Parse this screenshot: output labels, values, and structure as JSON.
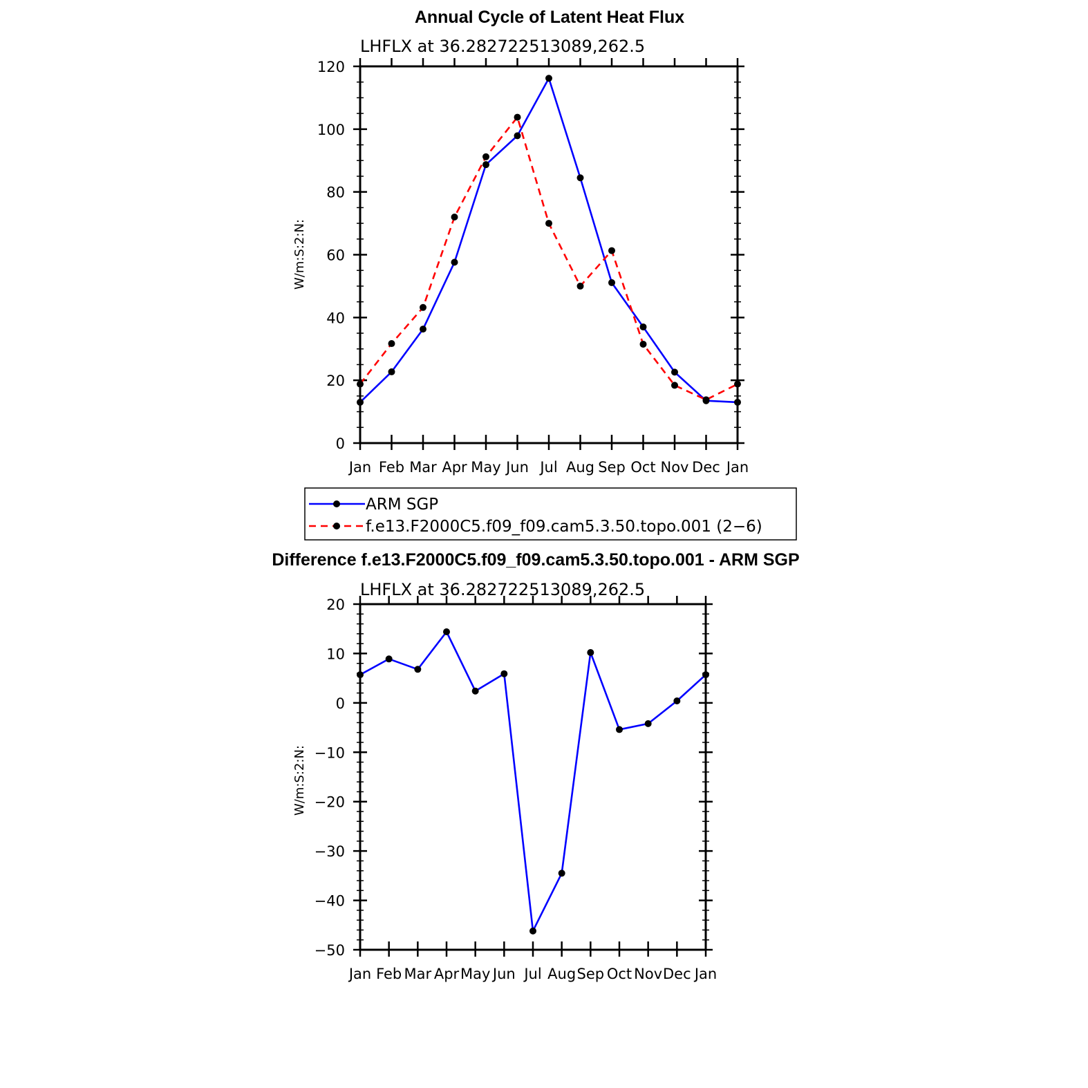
{
  "colors": {
    "series_a": "#0000ff",
    "series_b": "#ff0000",
    "marker": "#000000",
    "axis": "#000000"
  },
  "top": {
    "title": "Annual Cycle of Latent Heat Flux",
    "subtitle": "LHFLX  at  36.282722513089,262.5",
    "ylabel": "W/m:S:2:N:"
  },
  "bottom": {
    "title": "Difference f.e13.F2000C5.f09_f09.cam5.3.50.topo.001 - ARM SGP",
    "subtitle": "LHFLX  at  36.282722513089,262.5",
    "ylabel": "W/m:S:2:N:"
  },
  "legend": {
    "a": "ARM SGP",
    "b": "f.e13.F2000C5.f09_f09.cam5.3.50.topo.001 (2−6)"
  },
  "chart_data": [
    {
      "type": "line",
      "title": "Annual Cycle of Latent Heat Flux",
      "subtitle": "LHFLX  at  36.282722513089,262.5",
      "ylabel": "W/m:S:2:N:",
      "categories": [
        "Jan",
        "Feb",
        "Mar",
        "Apr",
        "May",
        "Jun",
        "Jul",
        "Aug",
        "Sep",
        "Oct",
        "Nov",
        "Dec",
        "Jan"
      ],
      "ylim": [
        0,
        120
      ],
      "yticks": [
        0,
        20,
        40,
        60,
        80,
        100,
        120
      ],
      "legend_position": "bottom",
      "series": [
        {
          "name": "ARM SGP",
          "color": "#0000ff",
          "dash": "solid",
          "values": [
            13,
            22.7,
            36.3,
            57.6,
            88.7,
            97.9,
            116.2,
            84.5,
            51.1,
            37.0,
            22.6,
            13.5,
            13.0
          ]
        },
        {
          "name": "f.e13.F2000C5.f09_f09.cam5.3.50.topo.001 (2−6)",
          "color": "#ff0000",
          "dash": "dashed",
          "values": [
            18.8,
            31.7,
            43.2,
            72.0,
            91.2,
            103.8,
            70.0,
            50.0,
            61.3,
            31.5,
            18.4,
            13.8,
            18.8
          ]
        }
      ]
    },
    {
      "type": "line",
      "title": "Difference f.e13.F2000C5.f09_f09.cam5.3.50.topo.001 - ARM SGP",
      "subtitle": "LHFLX  at  36.282722513089,262.5",
      "ylabel": "W/m:S:2:N:",
      "categories": [
        "Jan",
        "Feb",
        "Mar",
        "Apr",
        "May",
        "Jun",
        "Jul",
        "Aug",
        "Sep",
        "Oct",
        "Nov",
        "Dec",
        "Jan"
      ],
      "ylim": [
        -50,
        20
      ],
      "yticks": [
        -50,
        -40,
        -30,
        -20,
        -10,
        0,
        10,
        20
      ],
      "series": [
        {
          "color": "#0000ff",
          "dash": "solid",
          "values": [
            5.7,
            8.9,
            6.8,
            14.4,
            2.4,
            5.9,
            -46.2,
            -34.5,
            10.2,
            -5.4,
            -4.2,
            0.4,
            5.7
          ]
        }
      ]
    }
  ]
}
